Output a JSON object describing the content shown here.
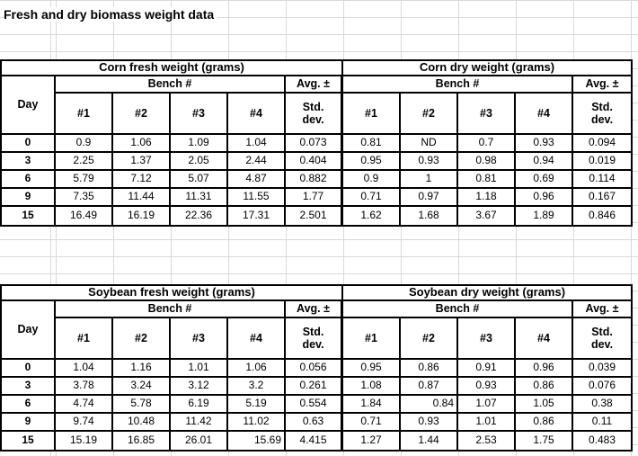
{
  "sheet_title": "Fresh and dry biomass weight data",
  "headers": {
    "day": "Day",
    "bench": "Bench #",
    "avg": "Avg. ±",
    "std": "Std.",
    "dev": "dev.",
    "benches": [
      "#1",
      "#2",
      "#3",
      "#4"
    ]
  },
  "groups": [
    {
      "name": "corn",
      "fresh_title": "Corn fresh weight (grams)",
      "dry_title": "Corn dry weight (grams)",
      "rows": [
        {
          "day": "0",
          "fresh": [
            "0.9",
            "1.06",
            "1.09",
            "1.04"
          ],
          "fresh_avg": "0.073",
          "dry": [
            "0.81",
            "ND",
            "0.7",
            "0.93"
          ],
          "dry_avg": "0.094"
        },
        {
          "day": "3",
          "fresh": [
            "2.25",
            "1.37",
            "2.05",
            "2.44"
          ],
          "fresh_avg": "0.404",
          "dry": [
            "0.95",
            "0.93",
            "0.98",
            "0.94"
          ],
          "dry_avg": "0.019"
        },
        {
          "day": "6",
          "fresh": [
            "5.79",
            "7.12",
            "5.07",
            "4.87"
          ],
          "fresh_avg": "0.882",
          "dry": [
            "0.9",
            "1",
            "0.81",
            "0.69"
          ],
          "dry_avg": "0.114"
        },
        {
          "day": "9",
          "fresh": [
            "7.35",
            "11.44",
            "11.31",
            "11.55"
          ],
          "fresh_avg": "1.77",
          "dry": [
            "0.71",
            "0.97",
            "1.18",
            "0.96"
          ],
          "dry_avg": "0.167"
        },
        {
          "day": "15",
          "fresh": [
            "16.49",
            "16.19",
            "22.36",
            "17.31"
          ],
          "fresh_avg": "2.501",
          "dry": [
            "1.62",
            "1.68",
            "3.67",
            "1.89"
          ],
          "dry_avg": "0.846"
        }
      ]
    },
    {
      "name": "soybean",
      "fresh_title": "Soybean fresh weight (grams)",
      "dry_title": "Soybean dry weight (grams)",
      "rows": [
        {
          "day": "0",
          "fresh": [
            "1.04",
            "1.16",
            "1.01",
            "1.06"
          ],
          "fresh_avg": "0.056",
          "dry": [
            "0.95",
            "0.86",
            "0.91",
            "0.96"
          ],
          "dry_avg": "0.039"
        },
        {
          "day": "3",
          "fresh": [
            "3.78",
            "3.24",
            "3.12",
            "3.2"
          ],
          "fresh_avg": "0.261",
          "dry": [
            "1.08",
            "0.87",
            "0.93",
            "0.86"
          ],
          "dry_avg": "0.076"
        },
        {
          "day": "6",
          "fresh": [
            "4.74",
            "5.78",
            "6.19",
            "5.19"
          ],
          "fresh_avg": "0.554",
          "dry": [
            "1.84",
            {
              "v": "0.84",
              "align": "right"
            },
            "1.07",
            "1.05"
          ],
          "dry_avg": "0.38"
        },
        {
          "day": "9",
          "fresh": [
            "9.74",
            "10.48",
            "11.42",
            "11.02"
          ],
          "fresh_avg": "0.63",
          "dry": [
            "0.71",
            "0.93",
            "1.01",
            "0.86"
          ],
          "dry_avg": "0.11"
        },
        {
          "day": "15",
          "fresh": [
            "15.19",
            "16.85",
            "26.01",
            {
              "v": "15.69",
              "align": "right"
            }
          ],
          "fresh_avg": "4.415",
          "dry": [
            "1.27",
            "1.44",
            "2.53",
            "1.75"
          ],
          "dry_avg": "0.483"
        }
      ]
    }
  ],
  "grid_color": "#d9d9d9"
}
